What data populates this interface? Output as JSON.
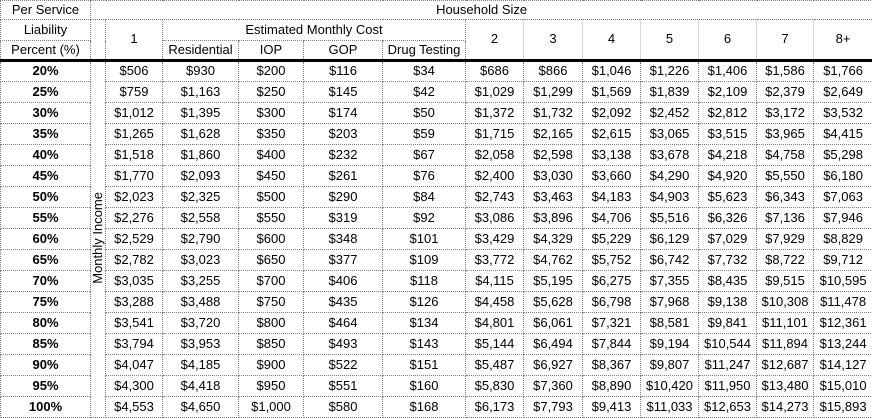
{
  "table": {
    "corner": {
      "line1": "Per Service",
      "line2": "Liability",
      "line3": "Percent (%)"
    },
    "household_size_label": "Household Size",
    "estimated_monthly_cost_label": "Estimated Monthly Cost",
    "monthly_income_label": "Monthly Income",
    "col1_label": "1",
    "service_columns": [
      "Residential",
      "IOP",
      "GOP",
      "Drug Testing"
    ],
    "household_columns": [
      "2",
      "3",
      "4",
      "5",
      "6",
      "7",
      "8+"
    ],
    "value_column_order": [
      "1",
      "Residential",
      "IOP",
      "GOP",
      "Drug Testing",
      "2",
      "3",
      "4",
      "5",
      "6",
      "7",
      "8+"
    ],
    "rows": [
      {
        "label": "20%",
        "values": [
          "$506",
          "$930",
          "$200",
          "$116",
          "$34",
          "$686",
          "$866",
          "$1,046",
          "$1,226",
          "$1,406",
          "$1,586",
          "$1,766"
        ]
      },
      {
        "label": "25%",
        "values": [
          "$759",
          "$1,163",
          "$250",
          "$145",
          "$42",
          "$1,029",
          "$1,299",
          "$1,569",
          "$1,839",
          "$2,109",
          "$2,379",
          "$2,649"
        ]
      },
      {
        "label": "30%",
        "values": [
          "$1,012",
          "$1,395",
          "$300",
          "$174",
          "$50",
          "$1,372",
          "$1,732",
          "$2,092",
          "$2,452",
          "$2,812",
          "$3,172",
          "$3,532"
        ]
      },
      {
        "label": "35%",
        "values": [
          "$1,265",
          "$1,628",
          "$350",
          "$203",
          "$59",
          "$1,715",
          "$2,165",
          "$2,615",
          "$3,065",
          "$3,515",
          "$3,965",
          "$4,415"
        ]
      },
      {
        "label": "40%",
        "values": [
          "$1,518",
          "$1,860",
          "$400",
          "$232",
          "$67",
          "$2,058",
          "$2,598",
          "$3,138",
          "$3,678",
          "$4,218",
          "$4,758",
          "$5,298"
        ]
      },
      {
        "label": "45%",
        "values": [
          "$1,770",
          "$2,093",
          "$450",
          "$261",
          "$76",
          "$2,400",
          "$3,030",
          "$3,660",
          "$4,290",
          "$4,920",
          "$5,550",
          "$6,180"
        ]
      },
      {
        "label": "50%",
        "values": [
          "$2,023",
          "$2,325",
          "$500",
          "$290",
          "$84",
          "$2,743",
          "$3,463",
          "$4,183",
          "$4,903",
          "$5,623",
          "$6,343",
          "$7,063"
        ]
      },
      {
        "label": "55%",
        "values": [
          "$2,276",
          "$2,558",
          "$550",
          "$319",
          "$92",
          "$3,086",
          "$3,896",
          "$4,706",
          "$5,516",
          "$6,326",
          "$7,136",
          "$7,946"
        ]
      },
      {
        "label": "60%",
        "values": [
          "$2,529",
          "$2,790",
          "$600",
          "$348",
          "$101",
          "$3,429",
          "$4,329",
          "$5,229",
          "$6,129",
          "$7,029",
          "$7,929",
          "$8,829"
        ]
      },
      {
        "label": "65%",
        "values": [
          "$2,782",
          "$3,023",
          "$650",
          "$377",
          "$109",
          "$3,772",
          "$4,762",
          "$5,752",
          "$6,742",
          "$7,732",
          "$8,722",
          "$9,712"
        ]
      },
      {
        "label": "70%",
        "values": [
          "$3,035",
          "$3,255",
          "$700",
          "$406",
          "$118",
          "$4,115",
          "$5,195",
          "$6,275",
          "$7,355",
          "$8,435",
          "$9,515",
          "$10,595"
        ]
      },
      {
        "label": "75%",
        "values": [
          "$3,288",
          "$3,488",
          "$750",
          "$435",
          "$126",
          "$4,458",
          "$5,628",
          "$6,798",
          "$7,968",
          "$9,138",
          "$10,308",
          "$11,478"
        ]
      },
      {
        "label": "80%",
        "values": [
          "$3,541",
          "$3,720",
          "$800",
          "$464",
          "$134",
          "$4,801",
          "$6,061",
          "$7,321",
          "$8,581",
          "$9,841",
          "$11,101",
          "$12,361"
        ]
      },
      {
        "label": "85%",
        "values": [
          "$3,794",
          "$3,953",
          "$850",
          "$493",
          "$143",
          "$5,144",
          "$6,494",
          "$7,844",
          "$9,194",
          "$10,544",
          "$11,894",
          "$13,244"
        ]
      },
      {
        "label": "90%",
        "values": [
          "$4,047",
          "$4,185",
          "$900",
          "$522",
          "$151",
          "$5,487",
          "$6,927",
          "$8,367",
          "$9,807",
          "$11,247",
          "$12,687",
          "$14,127"
        ]
      },
      {
        "label": "95%",
        "values": [
          "$4,300",
          "$4,418",
          "$950",
          "$551",
          "$160",
          "$5,830",
          "$7,360",
          "$8,890",
          "$10,420",
          "$11,950",
          "$13,480",
          "$15,010"
        ]
      },
      {
        "label": "100%",
        "values": [
          "$4,553",
          "$4,650",
          "$1,000",
          "$580",
          "$168",
          "$6,173",
          "$7,793",
          "$9,413",
          "$11,033",
          "$12,653",
          "$14,273",
          "$15,893"
        ]
      }
    ]
  },
  "colors": {
    "text": "#000000",
    "background": "#ffffff",
    "grid_dotted": "#7f7f7f",
    "grid_light_solid": "#d9d9d9",
    "header_rule": "#000000"
  }
}
